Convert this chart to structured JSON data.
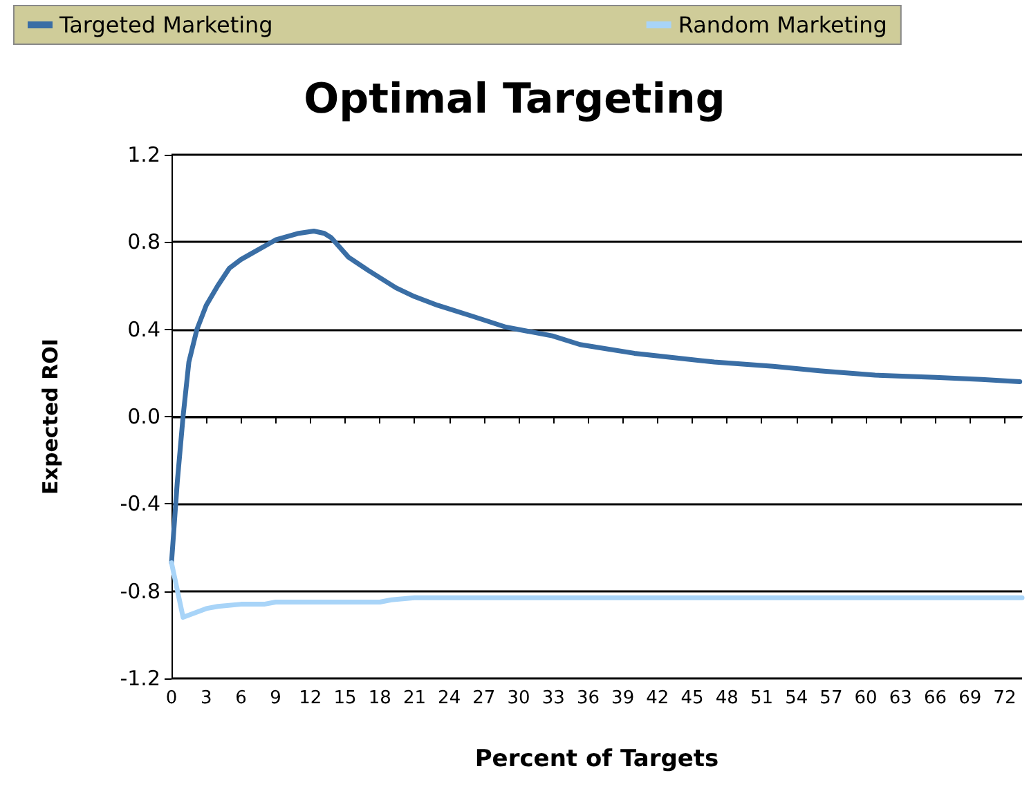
{
  "chart_data": {
    "type": "line",
    "title": "Optimal Targeting",
    "xlabel": "Percent of Targets",
    "ylabel": "Expected ROI",
    "xlim": [
      0,
      73.5
    ],
    "xticks": [
      0,
      3,
      6,
      9,
      12,
      15,
      18,
      21,
      24,
      27,
      30,
      33,
      36,
      39,
      42,
      45,
      48,
      51,
      54,
      57,
      60,
      63,
      66,
      69,
      72
    ],
    "ylim": [
      -1.2,
      1.2
    ],
    "yticks": [
      {
        "value": -1.2,
        "label": "-1.2"
      },
      {
        "value": -0.8,
        "label": "-0.8"
      },
      {
        "value": -0.4,
        "label": "-0.4"
      },
      {
        "value": 0,
        "label": "0.0"
      },
      {
        "value": 0.4,
        "label": "0.4"
      },
      {
        "value": 0.8,
        "label": "0.8"
      },
      {
        "value": 1.2,
        "label": "1.2"
      }
    ],
    "grid": "y",
    "legend": "top",
    "marker": "none",
    "line_style": "solid",
    "series": [
      {
        "name": "Targeted Marketing",
        "color": "#3a6ea5",
        "x": [
          0,
          0.5,
          1,
          1.5,
          2.2,
          3,
          4,
          5,
          6,
          7,
          9,
          11,
          12.3,
          13.2,
          13.8,
          15.3,
          17,
          19.4,
          21,
          23,
          26,
          28.9,
          32.9,
          35.3,
          40,
          46.9,
          52,
          56,
          60.8,
          66,
          70,
          73.3
        ],
        "values": [
          -0.67,
          -0.3,
          0,
          0.25,
          0.4,
          0.51,
          0.6,
          0.68,
          0.72,
          0.75,
          0.81,
          0.84,
          0.85,
          0.84,
          0.82,
          0.73,
          0.67,
          0.59,
          0.55,
          0.51,
          0.46,
          0.41,
          0.37,
          0.33,
          0.29,
          0.25,
          0.23,
          0.21,
          0.19,
          0.18,
          0.17,
          0.16
        ]
      },
      {
        "name": "Random Marketing",
        "color": "#a8d4f8",
        "x": [
          0,
          1,
          2,
          3,
          4,
          6,
          8,
          9,
          12,
          15,
          18,
          19,
          21,
          30,
          40,
          50,
          60,
          70,
          73.5
        ],
        "values": [
          -0.67,
          -0.92,
          -0.9,
          -0.88,
          -0.87,
          -0.86,
          -0.86,
          -0.85,
          -0.85,
          -0.85,
          -0.85,
          -0.84,
          -0.83,
          -0.83,
          -0.83,
          -0.83,
          -0.83,
          -0.83,
          -0.83
        ]
      }
    ]
  }
}
